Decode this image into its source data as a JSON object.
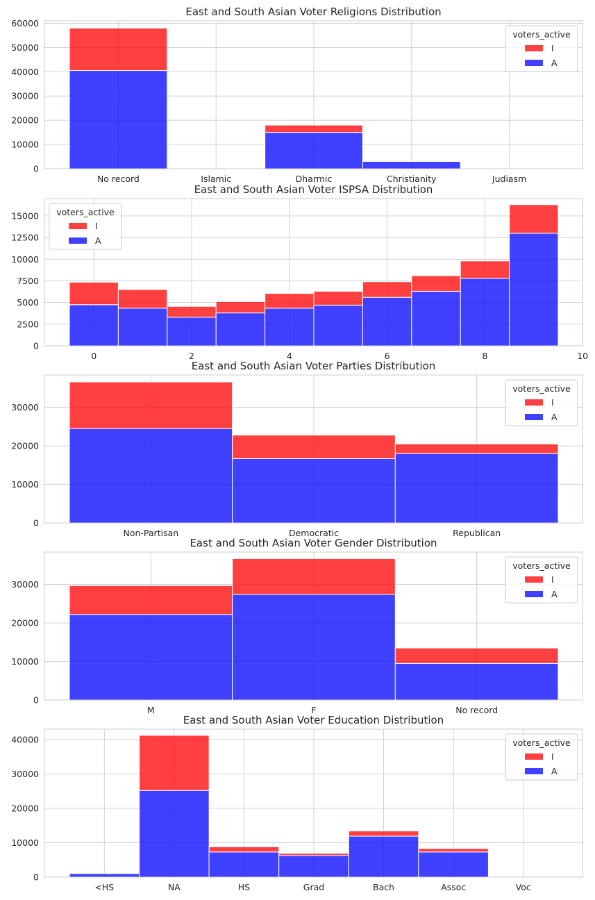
{
  "chart_data": [
    {
      "type": "bar",
      "stacked": true,
      "title": "East and South Asian Voter Religions Distribution",
      "categories": [
        "No record",
        "Islamic",
        "Dharmic",
        "Christianity",
        "Judiasm"
      ],
      "series": [
        {
          "name": "I",
          "values": [
            17500,
            0,
            3000,
            300,
            0
          ]
        },
        {
          "name": "A",
          "values": [
            40500,
            0,
            15000,
            3000,
            0
          ]
        }
      ],
      "ylim": [
        0,
        61000
      ],
      "yticks": [
        0,
        10000,
        20000,
        30000,
        40000,
        50000,
        60000
      ],
      "legend_title": "voters_active",
      "legend_position": "top-right",
      "grid": true
    },
    {
      "type": "bar",
      "stacked": true,
      "numeric_x": true,
      "title": "East and South Asian Voter ISPSA Distribution",
      "categories": [
        "0",
        "1",
        "2",
        "3",
        "4",
        "5",
        "6",
        "7",
        "8",
        "9"
      ],
      "x": [
        0,
        1,
        2,
        3,
        4,
        5,
        6,
        7,
        8,
        9
      ],
      "xlim": [
        -1,
        10
      ],
      "xticks": [
        0,
        2,
        4,
        6,
        8,
        10
      ],
      "series": [
        {
          "name": "I",
          "values": [
            2600,
            2150,
            1250,
            1300,
            1700,
            1600,
            1800,
            1800,
            2000,
            3300
          ]
        },
        {
          "name": "A",
          "values": [
            4750,
            4350,
            3300,
            3800,
            4350,
            4700,
            5600,
            6300,
            7800,
            13000
          ]
        }
      ],
      "ylim": [
        0,
        17000
      ],
      "yticks": [
        0,
        2500,
        5000,
        7500,
        10000,
        12500,
        15000
      ],
      "legend_title": "voters_active",
      "legend_position": "top-left",
      "grid": true
    },
    {
      "type": "bar",
      "stacked": true,
      "title": "East and South Asian Voter Parties Distribution",
      "categories": [
        "Non-Partisan",
        "Democratic",
        "Republican"
      ],
      "series": [
        {
          "name": "I",
          "values": [
            12100,
            6100,
            2500
          ]
        },
        {
          "name": "A",
          "values": [
            24500,
            16700,
            18000
          ]
        }
      ],
      "ylim": [
        0,
        38400
      ],
      "yticks": [
        0,
        10000,
        20000,
        30000
      ],
      "legend_title": "voters_active",
      "legend_position": "top-right",
      "grid": true
    },
    {
      "type": "bar",
      "stacked": true,
      "title": "East and South Asian Voter Gender Distribution",
      "categories": [
        "M",
        "F",
        "No record"
      ],
      "series": [
        {
          "name": "I",
          "values": [
            7500,
            9300,
            4000
          ]
        },
        {
          "name": "A",
          "values": [
            22200,
            27400,
            9500
          ]
        }
      ],
      "ylim": [
        0,
        38400
      ],
      "yticks": [
        0,
        10000,
        20000,
        30000
      ],
      "legend_title": "voters_active",
      "legend_position": "top-right",
      "grid": true
    },
    {
      "type": "bar",
      "stacked": true,
      "title": "East and South Asian Voter Education Distribution",
      "categories": [
        "<HS",
        "NA",
        "HS",
        "Grad",
        "Bach",
        "Assoc",
        "Voc"
      ],
      "series": [
        {
          "name": "I",
          "values": [
            0,
            16000,
            1500,
            600,
            1500,
            1000,
            0
          ]
        },
        {
          "name": "A",
          "values": [
            1000,
            25200,
            7300,
            6300,
            11900,
            7300,
            0
          ]
        }
      ],
      "ylim": [
        0,
        43000
      ],
      "yticks": [
        0,
        10000,
        20000,
        30000,
        40000
      ],
      "legend_title": "voters_active",
      "legend_position": "top-right",
      "grid": true
    }
  ],
  "colors": {
    "I": "#ff0000",
    "A": "#0000ff",
    "grid": "#cccccc",
    "text": "#262626"
  }
}
